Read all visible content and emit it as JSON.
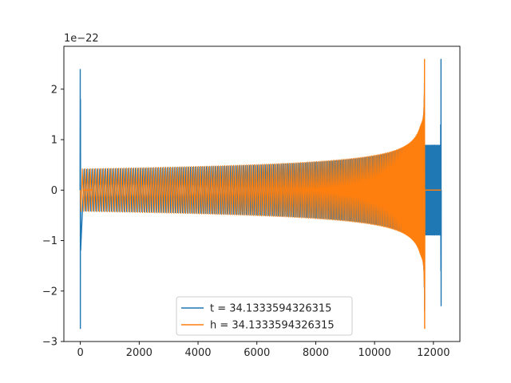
{
  "chart_data": {
    "type": "line",
    "title": "",
    "xlabel": "",
    "ylabel": "",
    "y_offset_label": "1e−22",
    "xlim": [
      -560,
      12900
    ],
    "ylim": [
      -3.0,
      2.85
    ],
    "x_ticks": [
      0,
      2000,
      4000,
      6000,
      8000,
      10000,
      12000
    ],
    "x_tick_labels": [
      "0",
      "2000",
      "4000",
      "6000",
      "8000",
      "10000",
      "12000"
    ],
    "y_ticks": [
      -3,
      -2,
      -1,
      0,
      1,
      2
    ],
    "y_tick_labels": [
      "−3",
      "−2",
      "−1",
      "0",
      "1",
      "2"
    ],
    "grid": false,
    "legend_position": "lower center",
    "series": [
      {
        "name": "t = 34.1333594326315",
        "color": "#1f77b4",
        "waveform": {
          "start_spike": {
            "x": 0,
            "max": 2.4,
            "min": -2.75
          },
          "chirp_start": 100,
          "merger_x": 11700,
          "merger_peak": 2.6,
          "start_amplitude": 0.42,
          "end_segment": {
            "x_start": 11720,
            "x_end": 12260,
            "amplitude": 0.9
          },
          "final_spike": {
            "x": 12260,
            "max": 2.6,
            "min": -2.3
          }
        }
      },
      {
        "name": "h = 34.1333594326315",
        "color": "#ff7f0e",
        "waveform": {
          "start_spike": {
            "x": 0,
            "max": 0.45,
            "min": -0.45
          },
          "flat_segment": [
            100,
            400
          ],
          "chirp_start": 0,
          "merger_x": 11700,
          "merger_peak": 2.6,
          "merger_trough": -2.75,
          "start_amplitude": 0.43,
          "end_flat": [
            11720,
            12260
          ]
        }
      }
    ]
  }
}
